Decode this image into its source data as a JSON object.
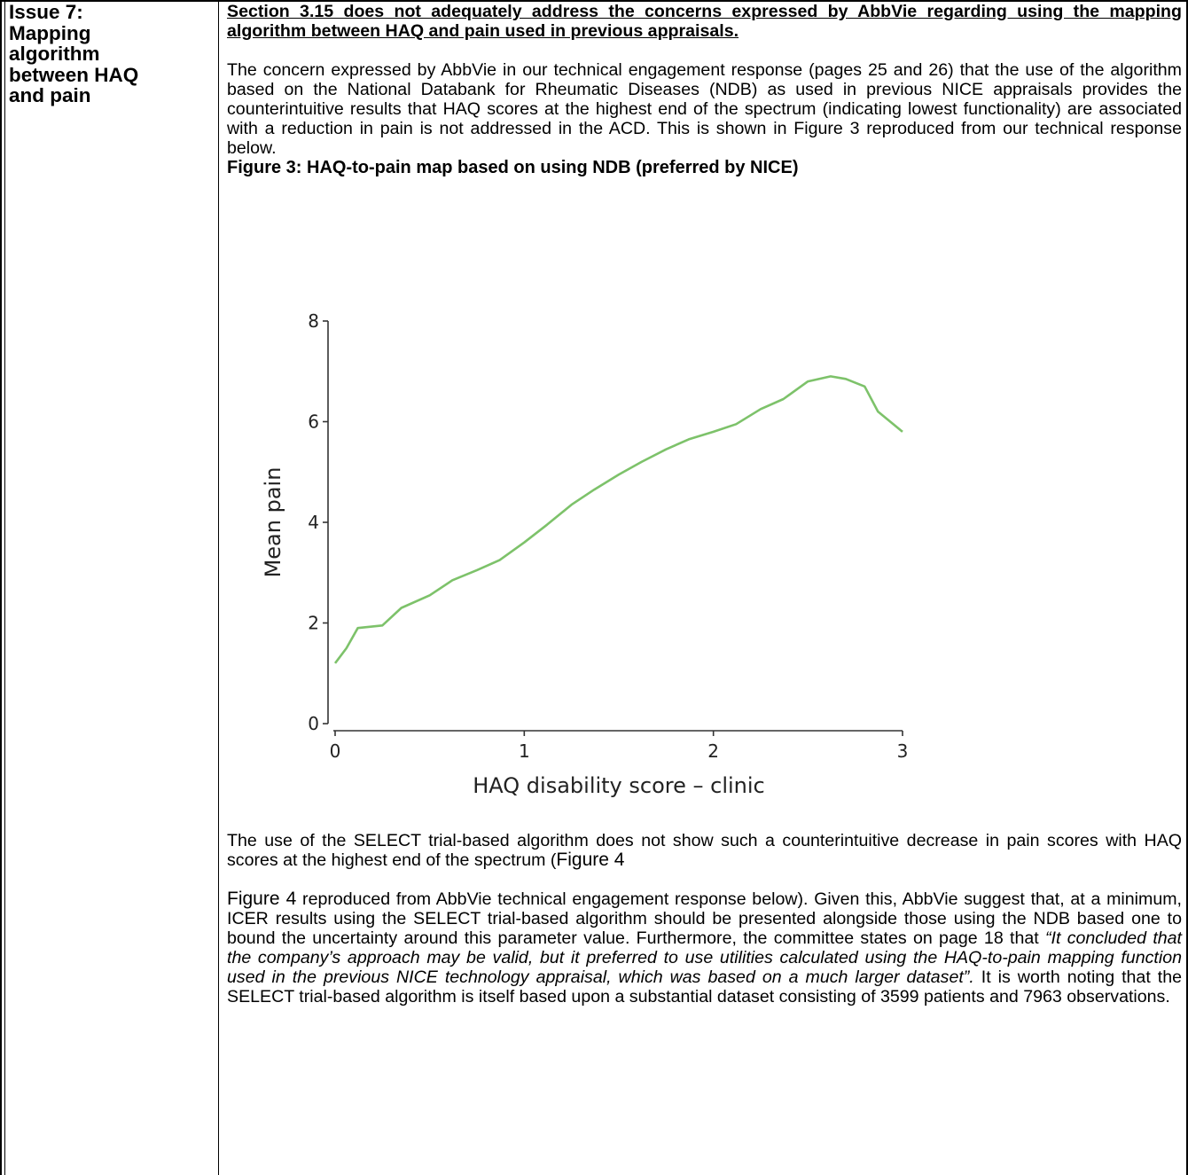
{
  "issue": {
    "title": "Issue 7:\nMapping\nalgorithm\nbetween HAQ\nand pain"
  },
  "content": {
    "heading": "Section 3.15 does not adequately address the concerns expressed by AbbVie regarding using the mapping algorithm between HAQ and pain used in previous appraisals.",
    "para1": "The concern expressed by AbbVie in our technical engagement response (pages 25 and 26) that the use of the algorithm based on the National Databank for Rheumatic Diseases (NDB) as used in previous NICE appraisals provides the counterintuitive results that HAQ scores at the highest end of the spectrum (indicating lowest functionality) are associated with a reduction in pain is not addressed in the ACD. This is shown in Figure 3 reproduced from our technical response below.",
    "figure_caption": "Figure 3: HAQ-to-pain map based on using NDB (preferred by NICE)",
    "para2_a": "The use of the SELECT trial-based algorithm does not show such a counterintuitive decrease in pain scores with HAQ scores at the highest end of the spectrum (",
    "para2_fig": "Figure 4",
    "para3_fig": "Figure 4",
    "para3_a": " reproduced from AbbVie technical engagement response below). Given this, AbbVie suggest that, at a minimum, ICER results using the SELECT trial-based algorithm should be presented alongside those using the NDB based one to bound the uncertainty around this parameter value.  Furthermore, the committee states on page 18 that ",
    "para3_quote": "“It concluded that the company’s approach may be valid, but it preferred to use utilities calculated using the HAQ-to-pain mapping function used in the previous NICE technology appraisal, which was based on a much larger dataset”.",
    "para3_b": " It is worth noting that the SELECT trial-based algorithm is itself based upon a substantial dataset consisting of 3599 patients and 7963 observations."
  },
  "chart_data": {
    "type": "line",
    "title": "",
    "xlabel": "HAQ disability score – clinic",
    "ylabel": "Mean pain",
    "xlim": [
      0,
      3
    ],
    "ylim": [
      0,
      8
    ],
    "x_ticks": [
      "0",
      "1",
      "2",
      "3"
    ],
    "y_ticks": [
      "0",
      "2",
      "4",
      "6",
      "8"
    ],
    "grid": false,
    "series": [
      {
        "color": "#7dc26a",
        "x": [
          0.0,
          0.06,
          0.12,
          0.25,
          0.35,
          0.5,
          0.62,
          0.75,
          0.87,
          1.0,
          1.12,
          1.25,
          1.37,
          1.5,
          1.62,
          1.75,
          1.87,
          2.0,
          2.12,
          2.25,
          2.37,
          2.5,
          2.62,
          2.7,
          2.8,
          2.87,
          3.0
        ],
        "y": [
          1.2,
          1.5,
          1.9,
          1.95,
          2.3,
          2.55,
          2.85,
          3.05,
          3.25,
          3.6,
          3.95,
          4.35,
          4.65,
          4.95,
          5.2,
          5.45,
          5.65,
          5.8,
          5.95,
          6.25,
          6.45,
          6.8,
          6.9,
          6.85,
          6.7,
          6.2,
          5.8
        ]
      }
    ]
  }
}
